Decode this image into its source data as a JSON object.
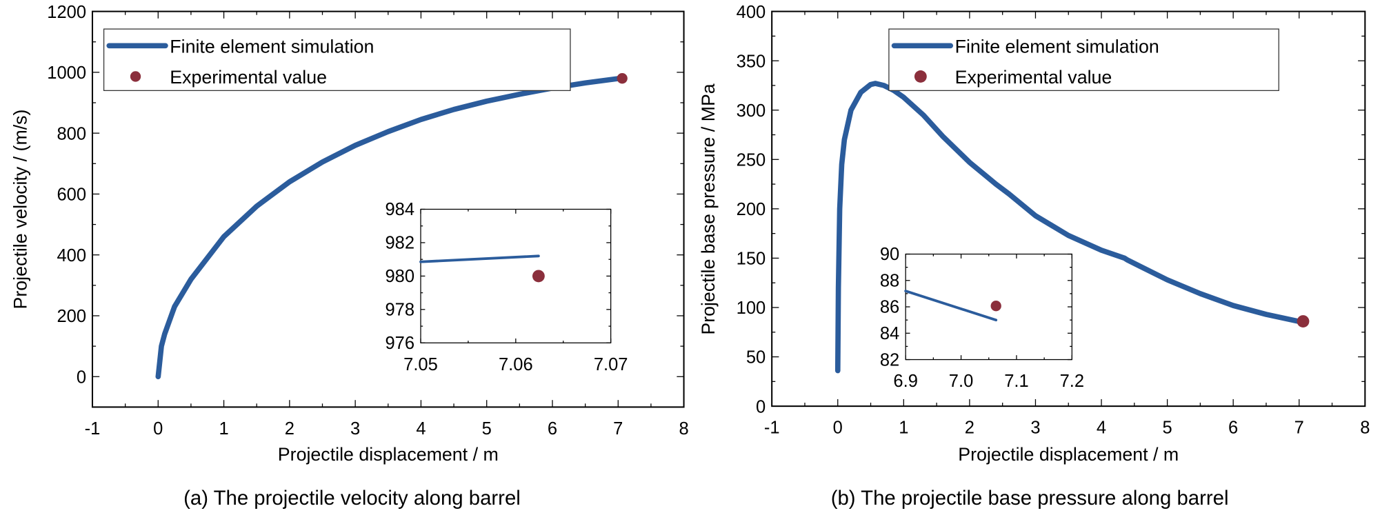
{
  "colors": {
    "simulation": "#2b5c9c",
    "experiment": "#8b2f3c"
  },
  "chart_data": [
    {
      "type": "line",
      "caption": "(a) The projectile velocity along barrel",
      "xlabel": "Projectile displacement / m",
      "ylabel": "Projectile velocity / (m/s)",
      "xlim": [
        -1,
        8
      ],
      "ylim": [
        -100,
        1200
      ],
      "xticks": [
        "-1",
        "0",
        "1",
        "2",
        "3",
        "4",
        "5",
        "6",
        "7",
        "8"
      ],
      "yticks": [
        "0",
        "200",
        "400",
        "600",
        "800",
        "1000",
        "1200"
      ],
      "legend": {
        "position": "top-left",
        "entries": [
          "Finite element simulation",
          "Experimental value"
        ]
      },
      "series": [
        {
          "name": "Finite element simulation",
          "kind": "line",
          "x": [
            0,
            0.05,
            0.1,
            0.25,
            0.5,
            1,
            1.5,
            2,
            2.5,
            3,
            3.5,
            4,
            4.5,
            5,
            5.5,
            6,
            6.5,
            7.06
          ],
          "y": [
            0,
            100,
            140,
            230,
            320,
            460,
            560,
            640,
            705,
            760,
            805,
            845,
            878,
            905,
            928,
            948,
            965,
            981
          ]
        },
        {
          "name": "Experimental value",
          "kind": "scatter",
          "x": [
            7.062
          ],
          "y": [
            980
          ]
        }
      ],
      "inset": {
        "xlim": [
          7.05,
          7.07
        ],
        "ylim": [
          976,
          984
        ],
        "xticks": [
          "7.05",
          "7.06",
          "7.07"
        ],
        "yticks": [
          "976",
          "978",
          "980",
          "982",
          "984"
        ],
        "series": [
          {
            "name": "Finite element simulation",
            "kind": "line",
            "x": [
              7.05,
              7.0624
            ],
            "y": [
              980.85,
              981.2
            ]
          },
          {
            "name": "Experimental value",
            "kind": "scatter",
            "x": [
              7.0624
            ],
            "y": [
              980.0
            ]
          }
        ]
      }
    },
    {
      "type": "line",
      "caption": "(b) The projectile base pressure along barrel",
      "xlabel": "Projectile displacement / m",
      "ylabel": "Projectile base pressure / MPa",
      "xlim": [
        -1,
        8
      ],
      "ylim": [
        0,
        400
      ],
      "xticks": [
        "-1",
        "0",
        "1",
        "2",
        "3",
        "4",
        "5",
        "6",
        "7",
        "8"
      ],
      "yticks": [
        "0",
        "50",
        "100",
        "150",
        "200",
        "250",
        "300",
        "350",
        "400"
      ],
      "legend": {
        "position": "top-right",
        "entries": [
          "Finite element simulation",
          "Experimental value"
        ]
      },
      "series": [
        {
          "name": "Finite element simulation",
          "kind": "line",
          "x": [
            0,
            0.01,
            0.03,
            0.06,
            0.1,
            0.2,
            0.35,
            0.5,
            0.57,
            0.7,
            0.85,
            1,
            1.3,
            1.6,
            2,
            2.4,
            2.6,
            3,
            3.5,
            4,
            4.35,
            4.4,
            5,
            5.5,
            6,
            6.5,
            7.06
          ],
          "y": [
            36,
            120,
            200,
            245,
            270,
            300,
            318,
            326,
            327,
            325,
            320,
            313,
            295,
            273,
            247,
            225,
            215,
            193,
            173,
            158,
            150,
            148,
            128,
            114,
            102,
            93,
            85
          ]
        },
        {
          "name": "Experimental value",
          "kind": "scatter",
          "x": [
            7.06
          ],
          "y": [
            86
          ]
        }
      ],
      "inset": {
        "xlim": [
          6.9,
          7.2
        ],
        "ylim": [
          82,
          90
        ],
        "xticks": [
          "6.9",
          "7.0",
          "7.1",
          "7.2"
        ],
        "yticks": [
          "82",
          "84",
          "86",
          "88",
          "90"
        ],
        "series": [
          {
            "name": "Finite element simulation",
            "kind": "line",
            "x": [
              6.9,
              7.063
            ],
            "y": [
              87.2,
              85.0
            ]
          },
          {
            "name": "Experimental value",
            "kind": "scatter",
            "x": [
              7.063
            ],
            "y": [
              86.07
            ]
          }
        ]
      }
    }
  ]
}
